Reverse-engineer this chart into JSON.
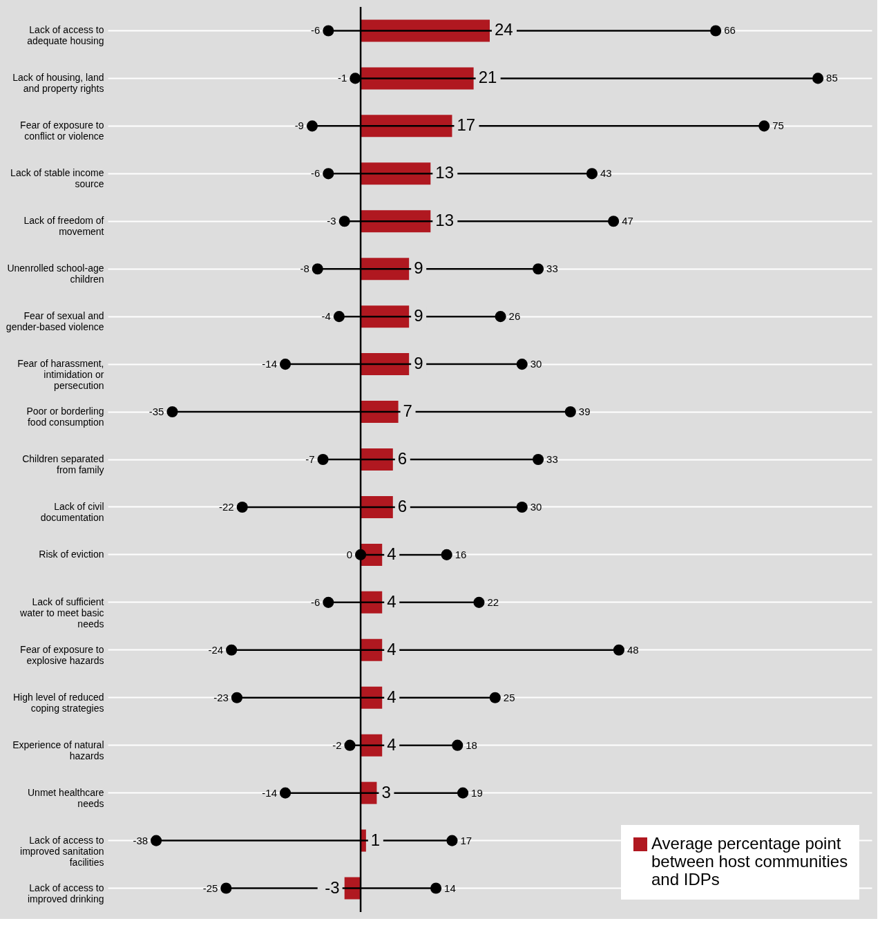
{
  "chart_data": {
    "type": "bar",
    "orientation": "horizontal",
    "data_labels": true,
    "grid": "y",
    "legend": "bottom right",
    "marker": "circle",
    "categories": [
      "Lack of access to adequate housing",
      "Lack of housing, land and property rights",
      "Fear of exposure to conflict or violence",
      "Lack of stable income source",
      "Lack of freedom of movement",
      "Unenrolled school-age children",
      "Fear of sexual and gender-based violence",
      "Fear of harassment, intimidation or persecution",
      "Poor or borderling food consumption",
      "Children separated from family",
      "Lack of civil documentation",
      "Risk of eviction",
      "Lack of sufficient water to meet basic needs",
      "Fear of exposure to explosive hazards",
      "High level of reduced coping strategies",
      "Experience of natural hazards",
      "Unmet healthcare needs",
      "Lack of access to improved sanitation facilities",
      "Lack of access to improved drinking"
    ],
    "series": [
      {
        "type": "lollipop",
        "color": "#000000",
        "values": [
          66,
          85,
          75,
          43,
          47,
          33,
          26,
          30,
          39,
          33,
          30,
          16,
          22,
          48,
          25,
          18,
          19,
          17,
          14
        ]
      },
      {
        "type": "lollipop",
        "color": "#000000",
        "values": [
          -6,
          -1,
          -9,
          -6,
          -3,
          -8,
          -4,
          -14,
          -35,
          -7,
          -22,
          0,
          -6,
          -24,
          -23,
          -2,
          -14,
          -38,
          -25
        ]
      },
      {
        "name": "Average percentage point between host communities and IDPs",
        "color": "#b01820",
        "values": [
          24,
          21,
          17,
          13,
          13,
          9,
          9,
          9,
          7,
          6,
          6,
          4,
          4,
          4,
          4,
          4,
          3,
          1,
          -3
        ]
      }
    ],
    "ref_lines": [
      {
        "axis": "x",
        "value": 0,
        "color": "#000000"
      }
    ]
  }
}
